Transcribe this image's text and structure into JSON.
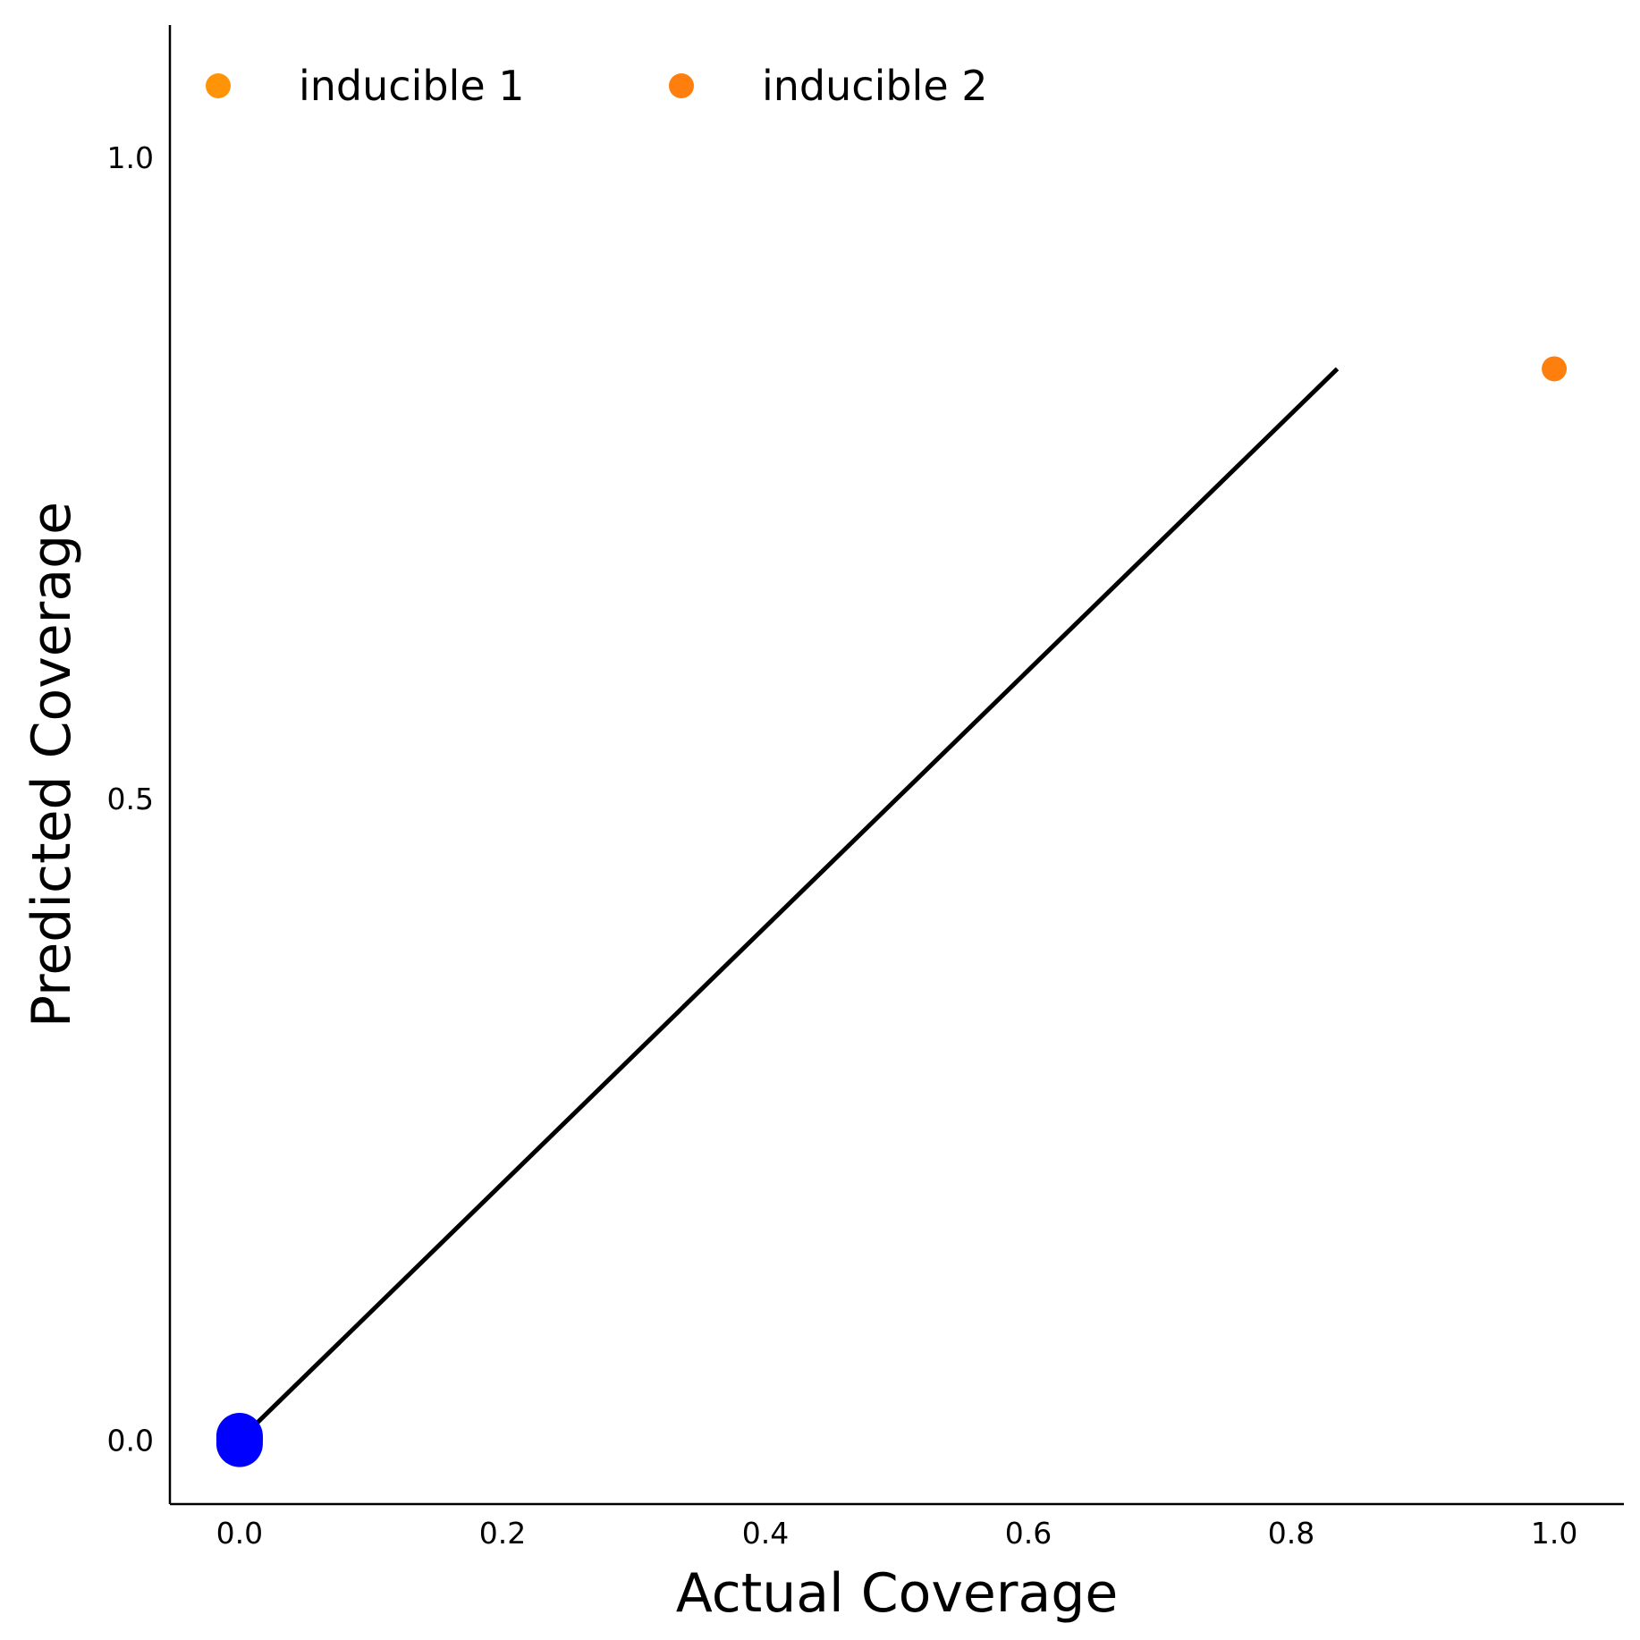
{
  "chart_data": {
    "type": "scatter",
    "title": "",
    "xlabel": "Actual Coverage",
    "ylabel": "Predicted Coverage",
    "xlim": [
      -0.053,
      1.053
    ],
    "ylim": [
      -0.05,
      1.103
    ],
    "xticks": [
      0.0,
      0.2,
      0.4,
      0.6,
      0.8,
      1.0
    ],
    "xtick_labels": [
      "0.0",
      "0.2",
      "0.4",
      "0.6",
      "0.8",
      "1.0"
    ],
    "yticks": [
      0.0,
      0.5,
      1.0
    ],
    "ytick_labels": [
      "0.0",
      "0.5",
      "1.0"
    ],
    "grid": false,
    "legend_position": "top-left",
    "reference_line": {
      "x": [
        0.0,
        0.835
      ],
      "y": [
        0.0,
        0.835
      ],
      "color": "#000000"
    },
    "series": [
      {
        "name": "inducible 1",
        "color": "#ff9408",
        "x": [
          0.0
        ],
        "y": [
          0.0
        ]
      },
      {
        "name": "inducible 2",
        "color": "#ff7f0e",
        "x": [
          1.0
        ],
        "y": [
          0.835
        ]
      },
      {
        "color": "#0000ff",
        "x": [
          0.0,
          0.0,
          0.0,
          0.0
        ],
        "y": [
          0.0,
          0.003,
          -0.003,
          0.001
        ]
      }
    ]
  }
}
